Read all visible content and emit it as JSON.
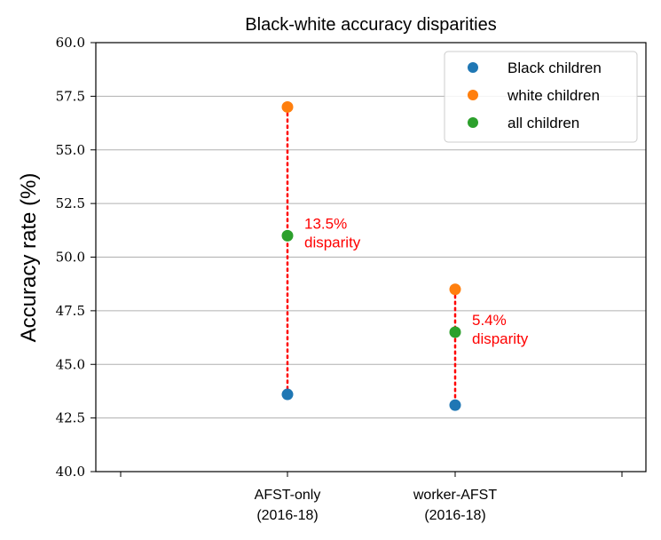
{
  "chart_data": {
    "type": "scatter",
    "title": "Black-white accuracy disparities",
    "xlabel": "",
    "ylabel": "Accuracy rate (%)",
    "ylim": [
      40.0,
      60.0
    ],
    "yticks": [
      "40.0",
      "42.5",
      "45.0",
      "47.5",
      "50.0",
      "52.5",
      "55.0",
      "57.5",
      "60.0"
    ],
    "grid": "horizontal",
    "legend_position": "top-right",
    "categories": [
      {
        "line1": "AFST-only",
        "line2": "(2016-18)"
      },
      {
        "line1": "worker-AFST",
        "line2": "(2016-18)"
      }
    ],
    "series": [
      {
        "name": "Black children",
        "color": "#1f77b4",
        "values": [
          43.6,
          43.1
        ]
      },
      {
        "name": "white children",
        "color": "#ff7f0e",
        "values": [
          57.0,
          48.5
        ]
      },
      {
        "name": "all children",
        "color": "#2ca02c",
        "values": [
          51.0,
          46.5
        ]
      }
    ],
    "annotations": [
      {
        "category_index": 0,
        "line1": "13.5%",
        "line2": "disparity",
        "color": "#ff0000"
      },
      {
        "category_index": 1,
        "line1": "5.4%",
        "line2": "disparity",
        "color": "#ff0000"
      }
    ]
  }
}
